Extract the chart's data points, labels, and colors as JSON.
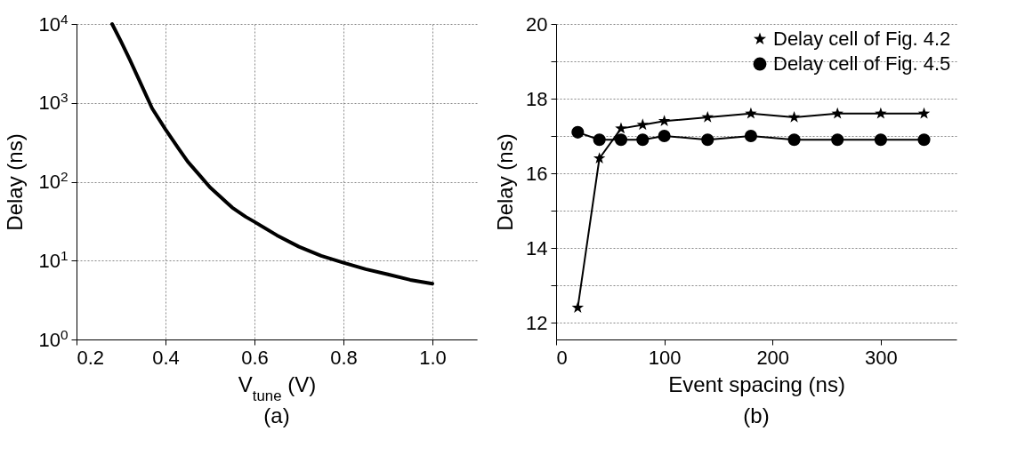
{
  "chart_data": [
    {
      "type": "line",
      "title": "(a)",
      "xlabel": "V$_{tune}$ (V)",
      "ylabel": "Delay (ns)",
      "log": "y",
      "grid": true,
      "marker": "none",
      "line_style": "solid",
      "xlim": [
        0.2,
        1.1
      ],
      "xticks": [
        {
          "value": 0.2,
          "label": "0.2"
        },
        {
          "value": 0.4,
          "label": "0.4"
        },
        {
          "value": 0.6,
          "label": "0.6"
        },
        {
          "value": 0.8,
          "label": "0.8"
        },
        {
          "value": 1.0,
          "label": "1.0"
        }
      ],
      "ylim": [
        1,
        10000
      ],
      "yticks": [
        {
          "value": 1,
          "label": "10$^{0}$"
        },
        {
          "value": 10,
          "label": "10$^{1}$"
        },
        {
          "value": 100,
          "label": "10$^{2}$"
        },
        {
          "value": 1000,
          "label": "10$^{3}$"
        },
        {
          "value": 10000,
          "label": "10$^{4}$"
        }
      ],
      "series": [
        {
          "color": "#000000",
          "x": [
            0.28,
            0.3,
            0.32,
            0.35,
            0.37,
            0.4,
            0.43,
            0.45,
            0.48,
            0.5,
            0.55,
            0.58,
            0.6,
            0.65,
            0.7,
            0.75,
            0.8,
            0.85,
            0.9,
            0.95,
            1.0
          ],
          "values": [
            10000,
            6000,
            3500,
            1500,
            850,
            460,
            260,
            180,
            115,
            85,
            47,
            36,
            31,
            21,
            15,
            11.5,
            9.4,
            7.8,
            6.7,
            5.7,
            5.1
          ]
        }
      ]
    },
    {
      "type": "line",
      "title": "(b)",
      "xlabel": "Event spacing (ns)",
      "ylabel": "Delay (ns)",
      "grid": "y",
      "legend": "top right",
      "line_style": "solid",
      "xlim": [
        0,
        370
      ],
      "xticks": [
        0,
        100,
        200,
        300
      ],
      "ylim": [
        11.55,
        20
      ],
      "yticks": [
        12,
        {
          "value": 13,
          "label": null
        },
        14,
        {
          "value": 15,
          "label": null
        },
        16,
        {
          "value": 17,
          "label": null
        },
        18,
        {
          "value": 19,
          "label": null
        },
        20
      ],
      "series": [
        {
          "name": "Delay cell of Fig. 4.2",
          "color": "#000000",
          "marker": "star",
          "x": [
            20,
            40,
            60,
            80,
            100,
            140,
            180,
            220,
            260,
            300,
            340
          ],
          "values": [
            12.4,
            16.4,
            17.2,
            17.3,
            17.4,
            17.5,
            17.6,
            17.5,
            17.6,
            17.6,
            17.6
          ]
        },
        {
          "name": "Delay cell of Fig. 4.5",
          "color": "#000000",
          "marker": "circle",
          "x": [
            20,
            40,
            60,
            80,
            100,
            140,
            180,
            220,
            260,
            300,
            340
          ],
          "values": [
            17.1,
            16.9,
            16.9,
            16.9,
            17.0,
            16.9,
            17.0,
            16.9,
            16.9,
            16.9,
            16.9
          ]
        }
      ]
    }
  ]
}
